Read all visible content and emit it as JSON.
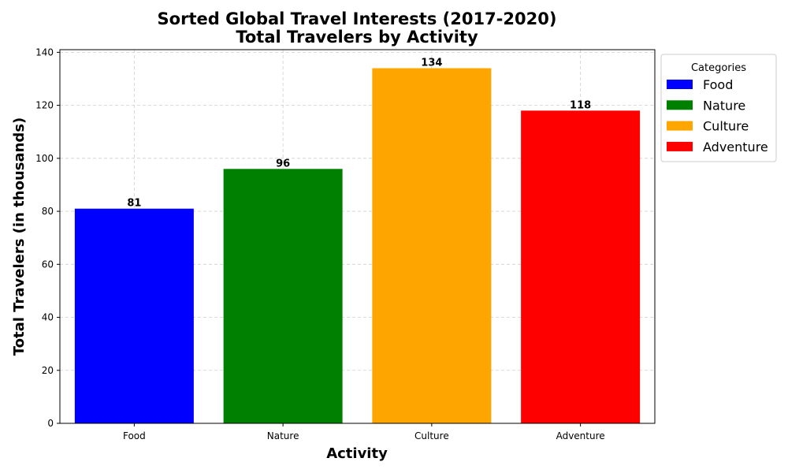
{
  "chart_data": {
    "type": "bar",
    "title": "Sorted Global Travel Interests (2017-2020)",
    "subtitle": "Total Travelers by Activity",
    "xlabel": "Activity",
    "ylabel": "Total Travelers (in thousands)",
    "categories": [
      "Food",
      "Nature",
      "Culture",
      "Adventure"
    ],
    "values": [
      81,
      96,
      134,
      118
    ],
    "colors": [
      "#0000ff",
      "#008000",
      "#ffa500",
      "#ff0000"
    ],
    "ylim": [
      0,
      141
    ],
    "yticks": [
      0,
      20,
      40,
      60,
      80,
      100,
      120,
      140
    ],
    "grid": true,
    "legend": {
      "title": "Categories",
      "placement": "outside-top-right",
      "entries": [
        "Food",
        "Nature",
        "Culture",
        "Adventure"
      ]
    }
  }
}
